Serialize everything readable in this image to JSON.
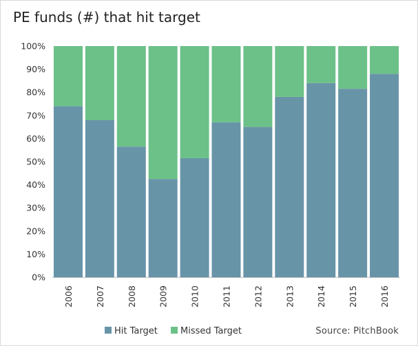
{
  "chart_data": {
    "type": "bar",
    "stacked": true,
    "title": "PE funds (#) that hit target",
    "xlabel": "",
    "ylabel": "",
    "categories": [
      "2006",
      "2007",
      "2008",
      "2009",
      "2010",
      "2011",
      "2012",
      "2013",
      "2014",
      "2015",
      "2016"
    ],
    "series": [
      {
        "name": "Hit Target",
        "color": "#6894a8",
        "values": [
          74,
          68,
          56.5,
          42.5,
          51.5,
          67,
          65,
          78,
          84,
          81.5,
          88
        ]
      },
      {
        "name": "Missed Target",
        "color": "#6cc188",
        "values": [
          26,
          32,
          43.5,
          57.5,
          48.5,
          33,
          35,
          22,
          16,
          18.5,
          12
        ]
      }
    ],
    "ylim": [
      0,
      100
    ],
    "yticks": [
      "0%",
      "10%",
      "20%",
      "30%",
      "40%",
      "50%",
      "60%",
      "70%",
      "80%",
      "90%",
      "100%"
    ],
    "grid": false,
    "legend": "bottom-left",
    "source": "Source: PitchBook"
  }
}
